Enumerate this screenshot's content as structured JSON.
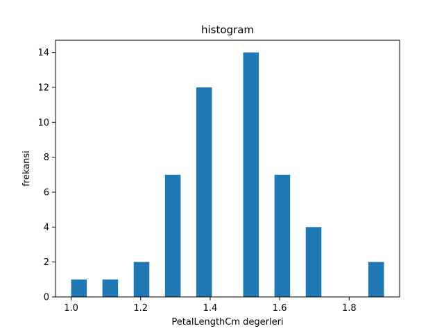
{
  "chart_data": {
    "type": "bar",
    "title": "histogram",
    "xlabel": "PetalLengthCm degerleri",
    "ylabel": "frekansi",
    "xlim": [
      0.955,
      1.945
    ],
    "ylim": [
      0,
      14.7
    ],
    "x_ticks": [
      1.0,
      1.2,
      1.4,
      1.6,
      1.8
    ],
    "x_tick_labels": [
      "1.0",
      "1.2",
      "1.4",
      "1.6",
      "1.8"
    ],
    "y_ticks": [
      0,
      2,
      4,
      6,
      8,
      10,
      12,
      14
    ],
    "y_tick_labels": [
      "0",
      "2",
      "4",
      "6",
      "8",
      "10",
      "12",
      "14"
    ],
    "bar_color": "#1f77b4",
    "grid": false,
    "bars": [
      {
        "x_start": 1.0,
        "x_end": 1.045,
        "value": 1
      },
      {
        "x_start": 1.09,
        "x_end": 1.135,
        "value": 1
      },
      {
        "x_start": 1.18,
        "x_end": 1.225,
        "value": 2
      },
      {
        "x_start": 1.27,
        "x_end": 1.315,
        "value": 7
      },
      {
        "x_start": 1.36,
        "x_end": 1.405,
        "value": 12
      },
      {
        "x_start": 1.45,
        "x_end": 1.495,
        "value": 0
      },
      {
        "x_start": 1.495,
        "x_end": 1.54,
        "value": 14
      },
      {
        "x_start": 1.585,
        "x_end": 1.63,
        "value": 7
      },
      {
        "x_start": 1.675,
        "x_end": 1.72,
        "value": 4
      },
      {
        "x_start": 1.765,
        "x_end": 1.81,
        "value": 0
      },
      {
        "x_start": 1.855,
        "x_end": 1.9,
        "value": 2
      }
    ]
  }
}
